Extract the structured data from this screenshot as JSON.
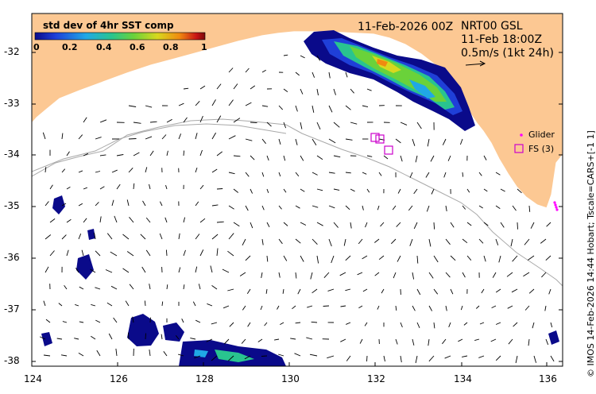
{
  "map": {
    "colorbar": {
      "title": "std dev of 4hr SST comp",
      "ticks": [
        "0",
        "0.2",
        "0.4",
        "0.6",
        "0.8",
        "1"
      ],
      "colors": [
        "#0a0a8a",
        "#1f3fd8",
        "#20a8e6",
        "#29c48f",
        "#6ad23a",
        "#d8d81e",
        "#f08a10",
        "#c81414",
        "#7a0a0a"
      ]
    },
    "header": {
      "date": "11-Feb-2026 00Z",
      "product": "NRT00 GSL",
      "time": "11-Feb 18:00Z",
      "scale": "0.5m/s (1kt 24h)"
    },
    "legend": {
      "glider": "Glider",
      "fs": "FS (3)",
      "glider_color": "#ff00ff",
      "fs_color": "#cc00cc"
    },
    "credit": "© IMOS 14-Feb-2026 14:44 Hobart; Tscale=CARS+[-1 1]",
    "axes": {
      "x_ticks": [
        "124",
        "126",
        "128",
        "130",
        "132",
        "134",
        "136"
      ],
      "y_ticks": [
        "-32",
        "-33",
        "-34",
        "-35",
        "-36",
        "-37",
        "-38"
      ]
    },
    "colors": {
      "land": "#fcc893",
      "coast": "#ffffff",
      "isobath": "#a9a9a9",
      "vector": "#000000"
    }
  }
}
